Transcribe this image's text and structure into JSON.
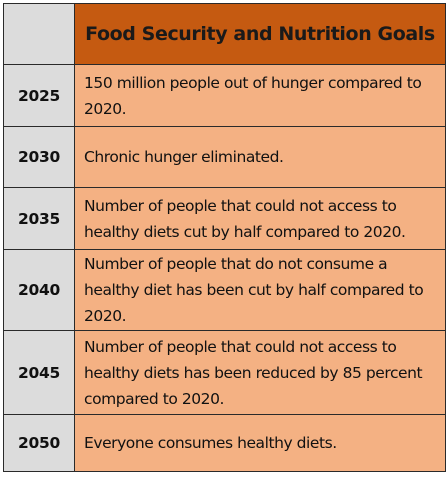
{
  "table": {
    "header": "Food Security and Nutrition Goals",
    "rows": [
      {
        "year": "2025",
        "goal": "150 million people out of hunger compared to 2020."
      },
      {
        "year": "2030",
        "goal": "Chronic hunger eliminated."
      },
      {
        "year": "2035",
        "goal": "Number of people that could not access to healthy diets cut by half compared to 2020."
      },
      {
        "year": "2040",
        "goal": "Number of people that do not consume a healthy diet has been cut by half compared to 2020."
      },
      {
        "year": "2045",
        "goal": "Number of people that could not access to healthy diets has been reduced by 85 percent compared to 2020."
      },
      {
        "year": "2050",
        "goal": "Everyone consumes healthy diets."
      }
    ]
  },
  "colors": {
    "header_background": "#c55a11",
    "goal_background": "#f4b183",
    "year_background": "#dcdcdc"
  }
}
